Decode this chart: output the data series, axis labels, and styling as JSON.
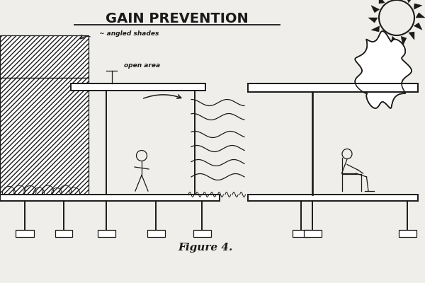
{
  "title": "GAIN PREVENTION",
  "figure_label": "Figure 4.",
  "label_angled_shades": "~ angled shades",
  "label_open_area": "open area",
  "bg_color": "#f0eeea",
  "line_color": "#1a1a1a",
  "title_fontsize": 14,
  "label_fontsize": 6.5,
  "fig_label_fontsize": 11
}
